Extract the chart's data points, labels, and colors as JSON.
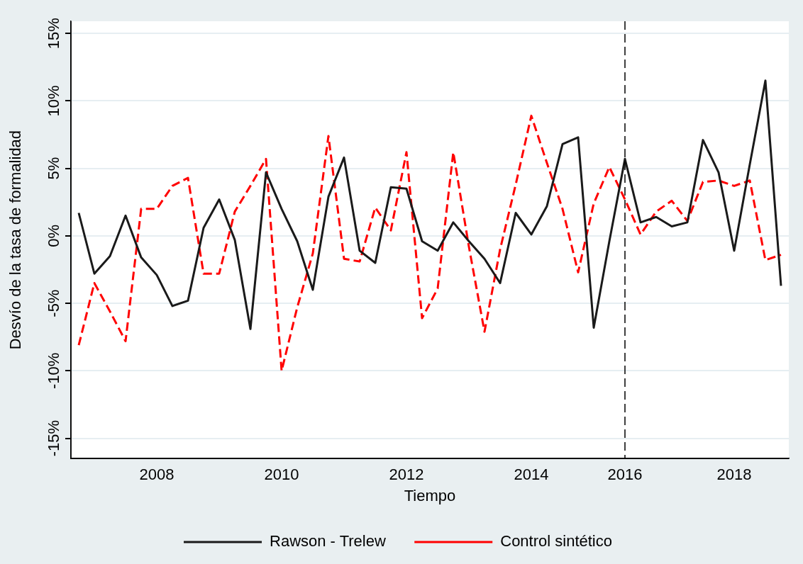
{
  "chart_data": {
    "type": "line",
    "xlabel": "Tiempo",
    "ylabel": "Desvío de la tasa de formalidad",
    "categories": [
      null,
      null,
      null,
      null,
      null,
      "2008",
      null,
      null,
      null,
      null,
      null,
      null,
      null,
      "2010",
      null,
      null,
      null,
      null,
      null,
      null,
      null,
      "2012",
      null,
      null,
      null,
      null,
      null,
      null,
      null,
      "2014",
      null,
      null,
      null,
      null,
      null,
      "2016",
      null,
      null,
      null,
      null,
      null,
      null,
      "2018",
      null,
      null,
      null
    ],
    "series": [
      {
        "name": "Rawson - Trelew",
        "color": "#1a1a1a",
        "line_style": "solid",
        "values": [
          1.7,
          -2.8,
          -1.5,
          1.5,
          -1.6,
          -2.9,
          -5.2,
          -4.8,
          0.6,
          2.7,
          -0.3,
          -6.9,
          4.7,
          2.0,
          -0.4,
          -4.0,
          2.9,
          5.8,
          -1.1,
          -2.0,
          3.6,
          3.5,
          -0.4,
          -1.1,
          1.0,
          -0.4,
          -1.7,
          -3.5,
          1.7,
          0.1,
          2.2,
          6.8,
          7.3,
          -6.8,
          -0.4,
          5.7,
          1.0,
          1.4,
          0.7,
          1.0,
          7.1,
          4.7,
          -1.1,
          5.3,
          11.5,
          -3.7
        ]
      },
      {
        "name": "Control sintético",
        "color": "#ff0000",
        "line_style": "dashed",
        "values": [
          -8.1,
          -3.5,
          -5.6,
          -7.8,
          2.0,
          2.0,
          3.7,
          4.3,
          -2.8,
          -2.8,
          1.8,
          3.7,
          5.7,
          -10.0,
          -5.3,
          -1.3,
          7.4,
          -1.7,
          -1.9,
          2.1,
          0.4,
          6.2,
          -6.1,
          -3.9,
          6.2,
          -0.8,
          -7.1,
          -1.0,
          3.8,
          8.9,
          5.4,
          2.0,
          -2.7,
          2.4,
          5.1,
          2.7,
          0.1,
          1.8,
          2.6,
          1.1,
          4.0,
          4.1,
          3.7,
          4.1,
          -1.8,
          -1.4
        ]
      }
    ],
    "ylim": [
      -16.5,
      15.9
    ],
    "yticks": [
      {
        "value": -15,
        "label": "-15%"
      },
      {
        "value": -10,
        "label": "-10%"
      },
      {
        "value": -5,
        "label": "-5%"
      },
      {
        "value": 0,
        "label": "0%"
      },
      {
        "value": 5,
        "label": "5%"
      },
      {
        "value": 10,
        "label": "10%"
      },
      {
        "value": 15,
        "label": "15%"
      }
    ],
    "ref_lines": [
      {
        "axis": "x",
        "value": "2016",
        "color": "#000000",
        "line_style": "dashed"
      }
    ],
    "grid": "y",
    "legend": "bottom",
    "marker": "none"
  }
}
